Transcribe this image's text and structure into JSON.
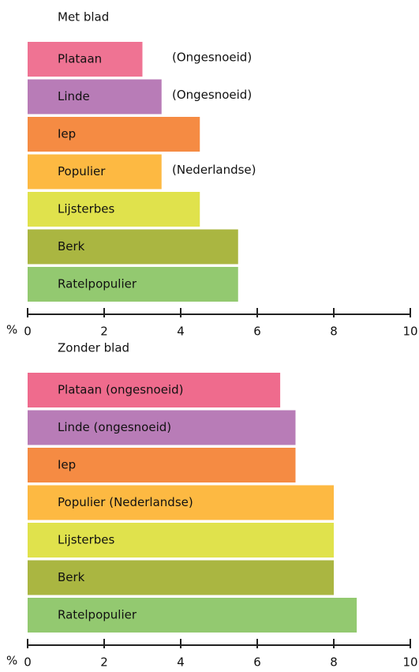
{
  "chart_data": [
    {
      "type": "bar",
      "orientation": "horizontal",
      "title": "Met blad",
      "x_label": "%",
      "categories": [
        "Plataan",
        "Linde",
        "Iep",
        "Populier",
        "Lijsterbes",
        "Berk",
        "Ratelpopulier"
      ],
      "values": [
        3,
        3.5,
        4.5,
        3.5,
        4.5,
        5.5,
        5.5
      ],
      "value_notes": [
        "(Ongesnoeid)",
        "(Ongesnoeid)",
        null,
        "(Nederlandse)",
        null,
        null,
        null
      ],
      "colors": [
        "#ef7393",
        "#b87cb7",
        "#f58b43",
        "#fdb942",
        "#e0e24c",
        "#aab641",
        "#93c970"
      ],
      "xlim": [
        0,
        10
      ],
      "xticks": [
        0,
        2,
        4,
        6,
        8,
        10
      ]
    },
    {
      "type": "bar",
      "orientation": "horizontal",
      "title": "Zonder blad",
      "x_label": "%",
      "categories": [
        "Plataan (ongesnoeid)",
        "Linde (ongesnoeid)",
        "Iep",
        "Populier (Nederlandse)",
        "Lijsterbes",
        "Berk",
        "Ratelpopulier"
      ],
      "values": [
        6.6,
        7,
        7,
        8,
        8,
        8,
        8.6
      ],
      "colors": [
        "#ef6b8d",
        "#b87cb7",
        "#f58b43",
        "#fdb942",
        "#e0e24c",
        "#aab641",
        "#93c970"
      ],
      "xlim": [
        0,
        10
      ],
      "xticks": [
        0,
        2,
        4,
        6,
        8,
        10
      ]
    }
  ]
}
